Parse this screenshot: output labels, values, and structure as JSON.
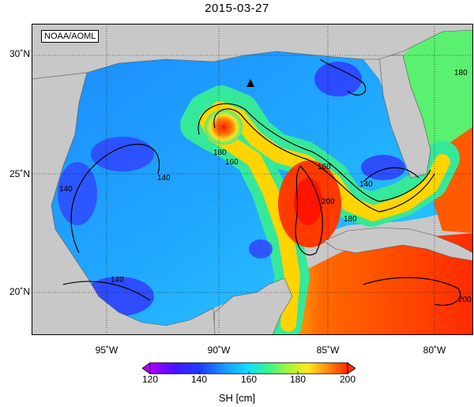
{
  "title": "2015-03-27",
  "source_label": "NOAA/AOML",
  "lat_labels": [
    "30˚N",
    "25˚N",
    "20˚N"
  ],
  "lon_labels": [
    "95˚W",
    "90˚W",
    "85˚W",
    "80˚W"
  ],
  "contour_labels": [
    "140",
    "140",
    "140",
    "140",
    "160",
    "160",
    "180",
    "180",
    "180",
    "200",
    "200"
  ],
  "colorbar": {
    "ticks": [
      "120",
      "140",
      "160",
      "180",
      "200"
    ],
    "title": "SH [cm]",
    "colors": [
      "#b000ff",
      "#2f1bff",
      "#1f7bff",
      "#10d7ff",
      "#35f59a",
      "#a8f53a",
      "#ffe81f",
      "#ff9b0d",
      "#ff2a00"
    ]
  },
  "colors": {
    "land": "#c8c8c8",
    "ocean_blue": "#2a7bff",
    "loop_current_warm": "#ff3a00"
  }
}
